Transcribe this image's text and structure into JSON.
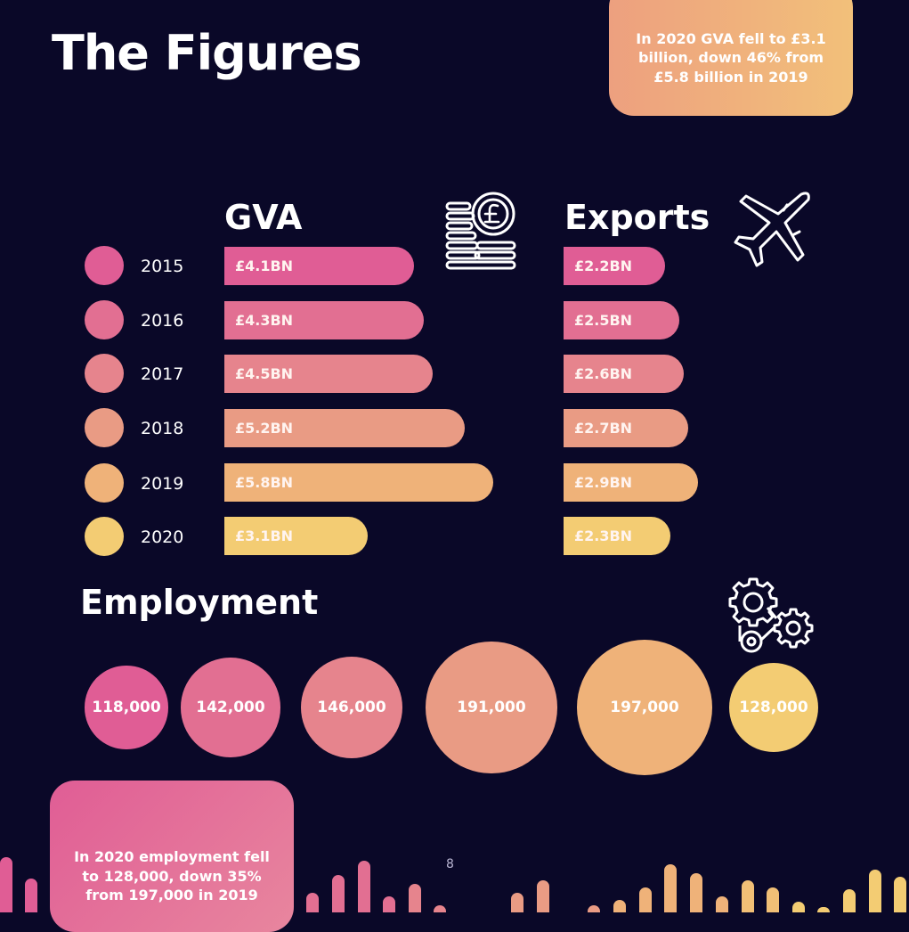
{
  "page": {
    "title": "The Figures",
    "gva_callout": "In 2020 GVA fell to £3.1 billion, down 46% from £5.8 billion in 2019",
    "employment_callout": "In 2020 employment fell to 128,000, down 35% from 197,000 in 2019",
    "page_number": "8",
    "icons": [
      "pound-coins-icon",
      "airplane-icon",
      "gears-icon"
    ]
  },
  "chart_data": [
    {
      "type": "bar",
      "title": "GVA",
      "categories": [
        "2015",
        "2016",
        "2017",
        "2018",
        "2019",
        "2020"
      ],
      "values": [
        4.1,
        4.3,
        4.5,
        5.2,
        5.8,
        3.1
      ],
      "labels": [
        "£4.1BN",
        "£4.3BN",
        "£4.5BN",
        "£5.2BN",
        "£5.8BN",
        "£3.1BN"
      ],
      "orientation": "horizontal"
    },
    {
      "type": "bar",
      "title": "Exports",
      "categories": [
        "2015",
        "2016",
        "2017",
        "2018",
        "2019",
        "2020"
      ],
      "values": [
        2.2,
        2.5,
        2.6,
        2.7,
        2.9,
        2.3
      ],
      "labels": [
        "£2.2BN",
        "£2.5BN",
        "£2.6BN",
        "£2.7BN",
        "£2.9BN",
        "£2.3BN"
      ],
      "orientation": "horizontal"
    },
    {
      "type": "bubble",
      "title": "Employment",
      "categories": [
        "2015",
        "2016",
        "2017",
        "2018",
        "2019",
        "2020"
      ],
      "values": [
        118000,
        142000,
        146000,
        191000,
        197000,
        128000
      ],
      "labels": [
        "118,000",
        "142,000",
        "146,000",
        "191,000",
        "197,000",
        "128,000"
      ]
    }
  ],
  "colors": {
    "background": "#0a0828",
    "year_palette": [
      "#e05d95",
      "#e26f92",
      "#e6848d",
      "#e99b84",
      "#efb279",
      "#f3cc73"
    ]
  }
}
